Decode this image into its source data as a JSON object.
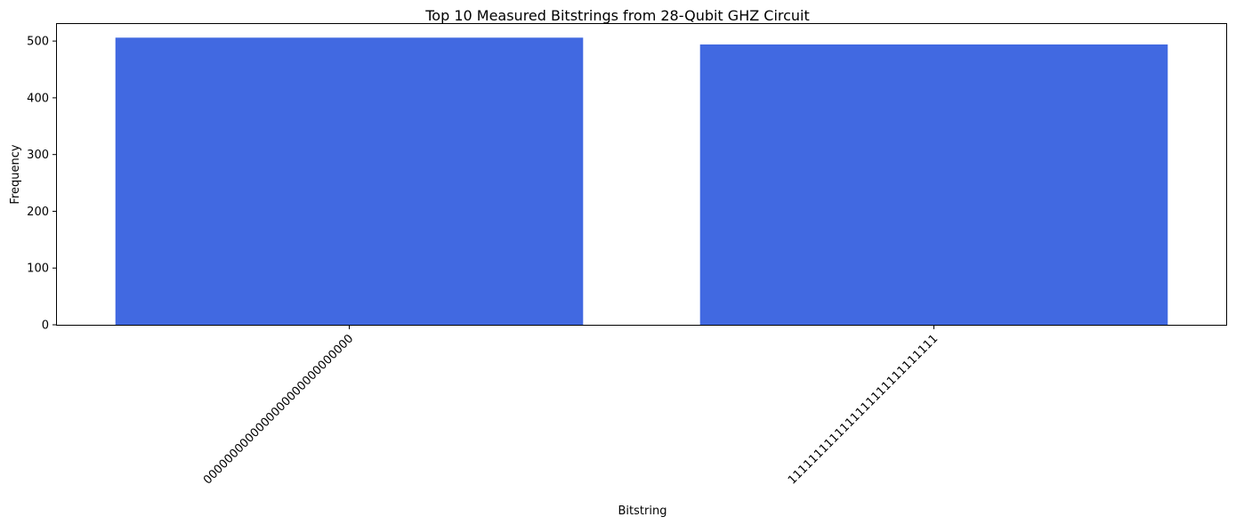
{
  "chart_data": {
    "type": "bar",
    "title": "Top 10 Measured Bitstrings from 28-Qubit GHZ Circuit",
    "xlabel": "Bitstring",
    "ylabel": "Frequency",
    "categories": [
      "0000000000000000000000000000",
      "1111111111111111111111111111"
    ],
    "values": [
      506,
      494
    ],
    "ylim": [
      0,
      530
    ],
    "yticks": [
      0,
      100,
      200,
      300,
      400,
      500
    ],
    "bar_color": "#4169E1",
    "grid": false,
    "legend": "none"
  }
}
